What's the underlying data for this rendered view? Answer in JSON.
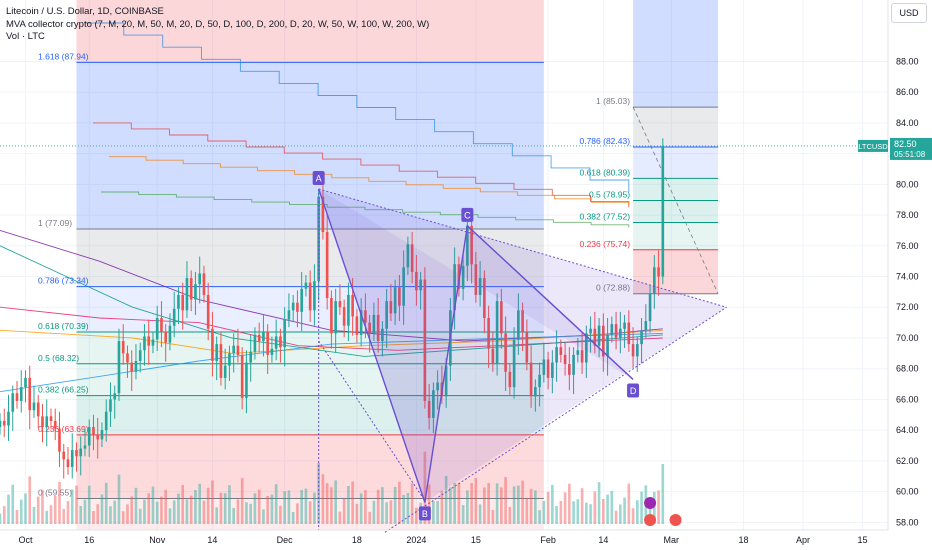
{
  "legend": {
    "line1": "Litecoin / U.S. Dollar, 1D, COINBASE",
    "line2": "MVA collector crypto (7, M, 20, M, 50, M, 20, D, 50, D, 100, D, 200, D, 20, W, 50, W, 100, W, 200, W)",
    "line3": "Vol · LTC"
  },
  "currency_button": "USD",
  "price_tag": {
    "symbol": "LTCUSD",
    "price": "82.50",
    "countdown": "05:51:08",
    "value": 82.5
  },
  "colors": {
    "up": "#26a69a",
    "down": "#ef5350",
    "pattern": "#6a4fd1",
    "fib_red": "#f23645",
    "fib_green": "#089981",
    "fib_blue": "#2962ff"
  },
  "chart_data": {
    "type": "candlestick",
    "y_range": [
      57.5,
      92
    ],
    "y_ticks": [
      "58.00",
      "60.00",
      "62.00",
      "64.00",
      "66.00",
      "68.00",
      "70.00",
      "72.00",
      "74.00",
      "76.00",
      "78.00",
      "80.00",
      "82.00",
      "84.00",
      "86.00",
      "88.00"
    ],
    "x_ticks": [
      "Oct",
      "16",
      "Nov",
      "14",
      "Dec",
      "18",
      "2024",
      "15",
      "Feb",
      "14",
      "Mar",
      "18",
      "Apr",
      "15"
    ],
    "x_tick_dates": [
      "2023-10-01",
      "2023-10-16",
      "2023-11-01",
      "2023-11-14",
      "2023-12-01",
      "2023-12-18",
      "2024-01-01",
      "2024-01-15",
      "2024-02-01",
      "2024-02-14",
      "2024-03-01",
      "2024-03-18",
      "2024-04-01",
      "2024-04-15"
    ],
    "candles": [
      {
        "date": "2023-09-25",
        "open": 64.2,
        "close": 64.6
      },
      {
        "date": "2023-09-26",
        "open": 64.6,
        "close": 64.3
      },
      {
        "date": "2023-09-27",
        "open": 64.3,
        "close": 65.2
      },
      {
        "date": "2023-09-28",
        "open": 65.2,
        "close": 66.4
      },
      {
        "date": "2023-09-29",
        "open": 66.4,
        "close": 65.9
      },
      {
        "date": "2023-09-30",
        "open": 65.9,
        "close": 66.8
      },
      {
        "date": "2023-10-01",
        "open": 66.8,
        "close": 67.4
      },
      {
        "date": "2023-10-02",
        "open": 67.4,
        "close": 65.3
      },
      {
        "date": "2023-10-03",
        "open": 65.3,
        "close": 65.8
      },
      {
        "date": "2023-10-04",
        "open": 65.8,
        "close": 64.9
      },
      {
        "date": "2023-10-05",
        "open": 64.9,
        "close": 64.2
      },
      {
        "date": "2023-10-06",
        "open": 64.2,
        "close": 64.9
      },
      {
        "date": "2023-10-07",
        "open": 64.9,
        "close": 64.6
      },
      {
        "date": "2023-10-08",
        "open": 64.6,
        "close": 64.1
      },
      {
        "date": "2023-10-09",
        "open": 64.1,
        "close": 62.6
      },
      {
        "date": "2023-10-10",
        "open": 62.6,
        "close": 62.1
      },
      {
        "date": "2023-10-11",
        "open": 62.1,
        "close": 61.6
      },
      {
        "date": "2023-10-12",
        "open": 61.6,
        "close": 62.7
      },
      {
        "date": "2023-10-13",
        "open": 62.7,
        "close": 62.3
      },
      {
        "date": "2023-10-14",
        "open": 62.3,
        "close": 62.8
      },
      {
        "date": "2023-10-15",
        "open": 62.8,
        "close": 63.0
      },
      {
        "date": "2023-10-16",
        "open": 63.0,
        "close": 64.2
      },
      {
        "date": "2023-10-17",
        "open": 64.2,
        "close": 63.7
      },
      {
        "date": "2023-10-18",
        "open": 63.7,
        "close": 63.4
      },
      {
        "date": "2023-10-19",
        "open": 63.4,
        "close": 64.0
      },
      {
        "date": "2023-10-20",
        "open": 64.0,
        "close": 65.2
      },
      {
        "date": "2023-10-21",
        "open": 65.2,
        "close": 66.0
      },
      {
        "date": "2023-10-22",
        "open": 66.0,
        "close": 66.4
      },
      {
        "date": "2023-10-23",
        "open": 66.4,
        "close": 69.8
      },
      {
        "date": "2023-10-24",
        "open": 69.8,
        "close": 69.0
      },
      {
        "date": "2023-10-25",
        "open": 69.0,
        "close": 68.4
      },
      {
        "date": "2023-10-26",
        "open": 68.4,
        "close": 67.8
      },
      {
        "date": "2023-10-27",
        "open": 67.8,
        "close": 68.5
      },
      {
        "date": "2023-10-28",
        "open": 68.5,
        "close": 69.2
      },
      {
        "date": "2023-10-29",
        "open": 69.2,
        "close": 70.1
      },
      {
        "date": "2023-10-30",
        "open": 70.1,
        "close": 69.5
      },
      {
        "date": "2023-10-31",
        "open": 69.5,
        "close": 69.9
      },
      {
        "date": "2023-11-01",
        "open": 69.9,
        "close": 71.3
      },
      {
        "date": "2023-11-02",
        "open": 71.3,
        "close": 70.4
      },
      {
        "date": "2023-11-03",
        "open": 70.4,
        "close": 69.7
      },
      {
        "date": "2023-11-04",
        "open": 69.7,
        "close": 70.8
      },
      {
        "date": "2023-11-05",
        "open": 70.8,
        "close": 71.9
      },
      {
        "date": "2023-11-06",
        "open": 71.9,
        "close": 72.8
      },
      {
        "date": "2023-11-07",
        "open": 72.8,
        "close": 71.8
      },
      {
        "date": "2023-11-08",
        "open": 71.8,
        "close": 73.9
      },
      {
        "date": "2023-11-09",
        "open": 73.9,
        "close": 72.5
      },
      {
        "date": "2023-11-10",
        "open": 72.5,
        "close": 73.5
      },
      {
        "date": "2023-11-11",
        "open": 73.5,
        "close": 74.2
      },
      {
        "date": "2023-11-12",
        "open": 74.2,
        "close": 72.8
      },
      {
        "date": "2023-11-13",
        "open": 72.8,
        "close": 70.6
      },
      {
        "date": "2023-11-14",
        "open": 70.6,
        "close": 68.5
      },
      {
        "date": "2023-11-15",
        "open": 68.5,
        "close": 69.6
      },
      {
        "date": "2023-11-16",
        "open": 69.6,
        "close": 67.4
      },
      {
        "date": "2023-11-17",
        "open": 67.4,
        "close": 68.2
      },
      {
        "date": "2023-11-18",
        "open": 68.2,
        "close": 69.0
      },
      {
        "date": "2023-11-19",
        "open": 69.0,
        "close": 69.5
      },
      {
        "date": "2023-11-20",
        "open": 69.5,
        "close": 68.9
      },
      {
        "date": "2023-11-21",
        "open": 68.9,
        "close": 66.1
      },
      {
        "date": "2023-11-22",
        "open": 66.1,
        "close": 68.4
      },
      {
        "date": "2023-11-23",
        "open": 68.4,
        "close": 69.1
      },
      {
        "date": "2023-11-24",
        "open": 69.1,
        "close": 70.2
      },
      {
        "date": "2023-11-25",
        "open": 70.2,
        "close": 69.8
      },
      {
        "date": "2023-11-26",
        "open": 69.8,
        "close": 70.4
      },
      {
        "date": "2023-11-27",
        "open": 70.4,
        "close": 68.9
      },
      {
        "date": "2023-11-28",
        "open": 68.9,
        "close": 69.3
      },
      {
        "date": "2023-11-29",
        "open": 69.3,
        "close": 70.1
      },
      {
        "date": "2023-11-30",
        "open": 70.1,
        "close": 69.4
      },
      {
        "date": "2023-12-01",
        "open": 69.4,
        "close": 71.2
      },
      {
        "date": "2023-12-02",
        "open": 71.2,
        "close": 71.8
      },
      {
        "date": "2023-12-03",
        "open": 71.8,
        "close": 72.3
      },
      {
        "date": "2023-12-04",
        "open": 72.3,
        "close": 71.7
      },
      {
        "date": "2023-12-05",
        "open": 71.7,
        "close": 73.2
      },
      {
        "date": "2023-12-06",
        "open": 73.2,
        "close": 73.6
      },
      {
        "date": "2023-12-07",
        "open": 73.6,
        "close": 71.8
      },
      {
        "date": "2023-12-08",
        "open": 71.8,
        "close": 73.7
      },
      {
        "date": "2023-12-09",
        "open": 73.7,
        "close": 79.2
      },
      {
        "date": "2023-12-10",
        "open": 79.2,
        "close": 76.9
      },
      {
        "date": "2023-12-11",
        "open": 76.9,
        "close": 72.6
      },
      {
        "date": "2023-12-12",
        "open": 72.6,
        "close": 70.3
      },
      {
        "date": "2023-12-13",
        "open": 70.3,
        "close": 72.4
      },
      {
        "date": "2023-12-14",
        "open": 72.4,
        "close": 72.0
      },
      {
        "date": "2023-12-15",
        "open": 72.0,
        "close": 70.8
      },
      {
        "date": "2023-12-16",
        "open": 70.8,
        "close": 72.8
      },
      {
        "date": "2023-12-17",
        "open": 72.8,
        "close": 71.4
      },
      {
        "date": "2023-12-18",
        "open": 71.4,
        "close": 70.2
      },
      {
        "date": "2023-12-19",
        "open": 70.2,
        "close": 71.8
      },
      {
        "date": "2023-12-20",
        "open": 71.8,
        "close": 71.0
      },
      {
        "date": "2023-12-21",
        "open": 71.0,
        "close": 70.3
      },
      {
        "date": "2023-12-22",
        "open": 70.3,
        "close": 71.5
      },
      {
        "date": "2023-12-23",
        "open": 71.5,
        "close": 69.8
      },
      {
        "date": "2023-12-24",
        "open": 69.8,
        "close": 70.6
      },
      {
        "date": "2023-12-25",
        "open": 70.6,
        "close": 72.4
      },
      {
        "date": "2023-12-26",
        "open": 72.4,
        "close": 71.6
      },
      {
        "date": "2023-12-27",
        "open": 71.6,
        "close": 73.3
      },
      {
        "date": "2023-12-28",
        "open": 73.3,
        "close": 72.1
      },
      {
        "date": "2023-12-29",
        "open": 72.1,
        "close": 74.6
      },
      {
        "date": "2023-12-30",
        "open": 74.6,
        "close": 76.1
      },
      {
        "date": "2023-12-31",
        "open": 76.1,
        "close": 74.3
      },
      {
        "date": "2024-01-01",
        "open": 74.3,
        "close": 73.1
      },
      {
        "date": "2024-01-02",
        "open": 73.1,
        "close": 73.8
      },
      {
        "date": "2024-01-03",
        "open": 73.8,
        "close": 65.9
      },
      {
        "date": "2024-01-04",
        "open": 65.9,
        "close": 64.8
      },
      {
        "date": "2024-01-05",
        "open": 64.8,
        "close": 66.6
      },
      {
        "date": "2024-01-06",
        "open": 66.6,
        "close": 67.1
      },
      {
        "date": "2024-01-07",
        "open": 67.1,
        "close": 66.2
      },
      {
        "date": "2024-01-08",
        "open": 66.2,
        "close": 68.2
      },
      {
        "date": "2024-01-09",
        "open": 68.2,
        "close": 71.8
      },
      {
        "date": "2024-01-10",
        "open": 71.8,
        "close": 74.8
      },
      {
        "date": "2024-01-11",
        "open": 74.8,
        "close": 73.2
      },
      {
        "date": "2024-01-12",
        "open": 73.2,
        "close": 74.7
      },
      {
        "date": "2024-01-13",
        "open": 74.7,
        "close": 77.3
      },
      {
        "date": "2024-01-14",
        "open": 77.3,
        "close": 74.8
      },
      {
        "date": "2024-01-15",
        "open": 74.8,
        "close": 72.8
      },
      {
        "date": "2024-01-16",
        "open": 72.8,
        "close": 73.9
      },
      {
        "date": "2024-01-17",
        "open": 73.9,
        "close": 71.3
      },
      {
        "date": "2024-01-18",
        "open": 71.3,
        "close": 69.3
      },
      {
        "date": "2024-01-19",
        "open": 69.3,
        "close": 68.3
      },
      {
        "date": "2024-01-20",
        "open": 68.3,
        "close": 72.4
      },
      {
        "date": "2024-01-21",
        "open": 72.4,
        "close": 70.3
      },
      {
        "date": "2024-01-22",
        "open": 70.3,
        "close": 67.8
      },
      {
        "date": "2024-01-23",
        "open": 67.8,
        "close": 66.8
      },
      {
        "date": "2024-01-24",
        "open": 66.8,
        "close": 69.9
      },
      {
        "date": "2024-01-25",
        "open": 69.9,
        "close": 71.8
      },
      {
        "date": "2024-01-26",
        "open": 71.8,
        "close": 70.4
      },
      {
        "date": "2024-01-27",
        "open": 70.4,
        "close": 68.4
      },
      {
        "date": "2024-01-28",
        "open": 68.4,
        "close": 66.2
      },
      {
        "date": "2024-01-29",
        "open": 66.2,
        "close": 66.8
      },
      {
        "date": "2024-01-30",
        "open": 66.8,
        "close": 67.6
      },
      {
        "date": "2024-01-31",
        "open": 67.6,
        "close": 68.6
      },
      {
        "date": "2024-02-01",
        "open": 68.6,
        "close": 67.4
      },
      {
        "date": "2024-02-02",
        "open": 67.4,
        "close": 68.4
      },
      {
        "date": "2024-02-03",
        "open": 68.4,
        "close": 69.4
      },
      {
        "date": "2024-02-04",
        "open": 69.4,
        "close": 68.9
      },
      {
        "date": "2024-02-05",
        "open": 68.9,
        "close": 68.3
      },
      {
        "date": "2024-02-06",
        "open": 68.3,
        "close": 67.6
      },
      {
        "date": "2024-02-07",
        "open": 67.6,
        "close": 68.9
      },
      {
        "date": "2024-02-08",
        "open": 68.9,
        "close": 69.2
      },
      {
        "date": "2024-02-09",
        "open": 69.2,
        "close": 68.4
      },
      {
        "date": "2024-02-10",
        "open": 68.4,
        "close": 70.3
      },
      {
        "date": "2024-02-11",
        "open": 70.3,
        "close": 70.6
      },
      {
        "date": "2024-02-12",
        "open": 70.6,
        "close": 69.5
      },
      {
        "date": "2024-02-13",
        "open": 69.5,
        "close": 70.8
      },
      {
        "date": "2024-02-14",
        "open": 70.8,
        "close": 68.8
      },
      {
        "date": "2024-02-15",
        "open": 68.8,
        "close": 70.2
      },
      {
        "date": "2024-02-16",
        "open": 70.2,
        "close": 70.9
      },
      {
        "date": "2024-02-17",
        "open": 70.9,
        "close": 70.0
      },
      {
        "date": "2024-02-18",
        "open": 70.0,
        "close": 70.6
      },
      {
        "date": "2024-02-19",
        "open": 70.6,
        "close": 71.0
      },
      {
        "date": "2024-02-20",
        "open": 71.0,
        "close": 69.6
      },
      {
        "date": "2024-02-21",
        "open": 69.6,
        "close": 68.8
      },
      {
        "date": "2024-02-22",
        "open": 68.8,
        "close": 69.6
      },
      {
        "date": "2024-02-23",
        "open": 69.6,
        "close": 70.5
      },
      {
        "date": "2024-02-24",
        "open": 70.5,
        "close": 71.1
      },
      {
        "date": "2024-02-25",
        "open": 71.1,
        "close": 72.9
      },
      {
        "date": "2024-02-26",
        "open": 72.9,
        "close": 74.6
      },
      {
        "date": "2024-02-27",
        "open": 74.6,
        "close": 74.0
      },
      {
        "date": "2024-02-28",
        "open": 74.0,
        "close": 82.5
      }
    ],
    "fibonacci_left": [
      {
        "label": "1.618 (87.94)",
        "value": 87.94
      },
      {
        "label": "1 (77.09)",
        "value": 77.09
      },
      {
        "label": "0.786 (73.34)",
        "value": 73.34
      },
      {
        "label": "0.618 (70.39)",
        "value": 70.39
      },
      {
        "label": "0.5 (68.32)",
        "value": 68.32
      },
      {
        "label": "0.382 (66.25)",
        "value": 66.25
      },
      {
        "label": "0.236 (63.69)",
        "value": 63.69
      },
      {
        "label": "0 (59.55)",
        "value": 59.55
      }
    ],
    "fibonacci_right": [
      {
        "label": "1 (85.03)",
        "value": 85.03
      },
      {
        "label": "0.786 (82.43)",
        "value": 82.43
      },
      {
        "label": "0.618 (80.39)",
        "value": 80.39
      },
      {
        "label": "0.5 (78.95)",
        "value": 78.95
      },
      {
        "label": "0.382 (77.52)",
        "value": 77.52
      },
      {
        "label": "0.236 (75.74)",
        "value": 75.74
      },
      {
        "label": "0 (72.88)",
        "value": 72.88
      }
    ],
    "pattern_points": [
      {
        "label": "A",
        "date": "2023-12-09",
        "value": 79.7
      },
      {
        "label": "B",
        "date": "2024-01-03",
        "value": 59.3
      },
      {
        "label": "C",
        "date": "2024-01-13",
        "value": 77.3
      },
      {
        "label": "D",
        "date": "2024-02-21",
        "value": 67.3
      }
    ]
  }
}
